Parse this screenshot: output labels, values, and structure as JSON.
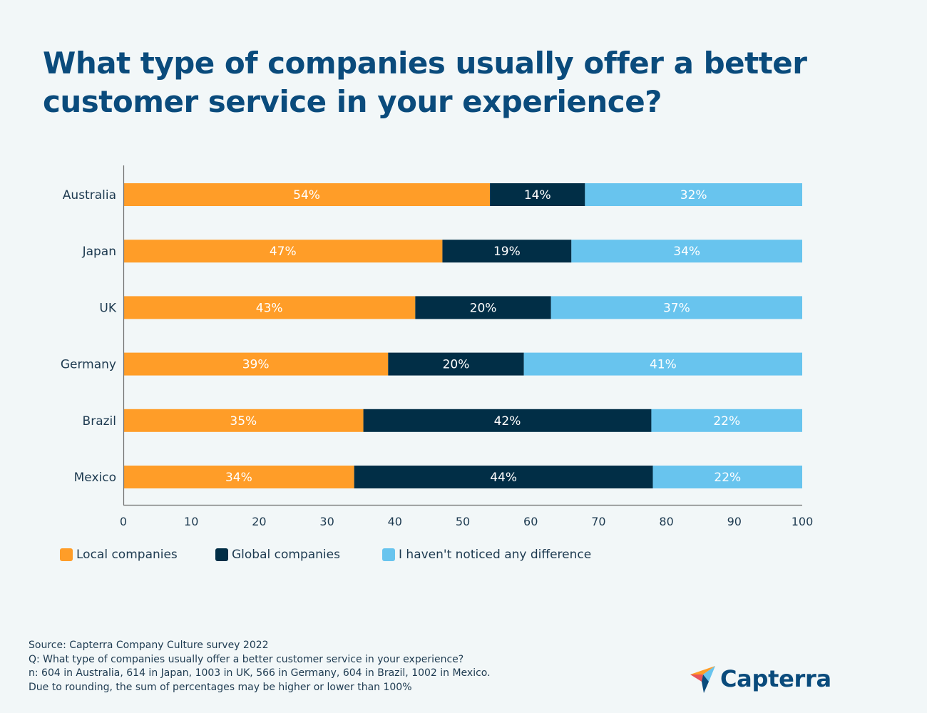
{
  "colors": {
    "local": "#ff9d28",
    "global": "#012e46",
    "no_difference": "#68c4ee",
    "title": "#0a4b7c",
    "axis": "#6b6b6b"
  },
  "brand": {
    "name": "Capterra"
  },
  "chart_data": {
    "type": "bar",
    "orientation": "horizontal",
    "stacked": true,
    "title": "What type of companies usually offer a better customer service in your experience?",
    "xlabel": "",
    "ylabel": "",
    "xlim": [
      0,
      100
    ],
    "xticks": [
      0,
      10,
      20,
      30,
      40,
      50,
      60,
      70,
      80,
      90,
      100
    ],
    "grid": false,
    "legend_position": "bottom-left",
    "categories": [
      "Australia",
      "Japan",
      "UK",
      "Germany",
      "Brazil",
      "Mexico"
    ],
    "series": [
      {
        "name": "Local companies",
        "color_key": "local",
        "values": [
          54,
          47,
          43,
          39,
          35,
          34
        ]
      },
      {
        "name": "Global companies",
        "color_key": "global",
        "values": [
          14,
          19,
          20,
          20,
          42,
          44
        ]
      },
      {
        "name": "I haven't noticed any difference",
        "color_key": "no_difference",
        "values": [
          32,
          34,
          37,
          41,
          22,
          22
        ]
      }
    ],
    "value_suffix": "%"
  },
  "footnote": [
    "Source: Capterra Company Culture survey 2022",
    "Q: What type of companies usually offer a better customer service in your experience?",
    "n: 604 in Australia, 614 in Japan, 1003 in UK, 566 in Germany, 604 in Brazil, 1002 in Mexico.",
    "Due to rounding, the sum of percentages may be higher or lower than 100%"
  ]
}
